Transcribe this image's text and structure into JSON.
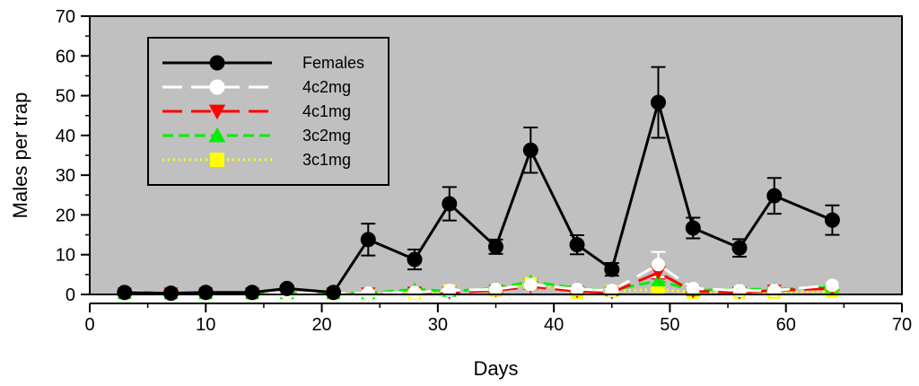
{
  "chart_data": {
    "type": "line",
    "xlabel": "Days",
    "ylabel": "Males per trap",
    "xlim": [
      0,
      70
    ],
    "ylim": [
      0,
      70
    ],
    "x_ticks": [
      0,
      10,
      20,
      30,
      40,
      50,
      60,
      70
    ],
    "y_ticks": [
      0,
      10,
      20,
      30,
      40,
      50,
      60,
      70
    ],
    "grid": false,
    "legend_position": "top-left",
    "plot_background": "#c0c0c0",
    "x": [
      3,
      7,
      10,
      14,
      17,
      21,
      24,
      28,
      31,
      35,
      38,
      42,
      45,
      49,
      52,
      56,
      59,
      64
    ],
    "series": [
      {
        "name": "Females",
        "color": "#000000",
        "dash": "solid",
        "marker": "circle",
        "values": [
          0.5,
          0.3,
          0.5,
          0.5,
          1.5,
          0.5,
          13.8,
          8.8,
          22.8,
          12.0,
          36.3,
          12.5,
          6.3,
          48.3,
          16.7,
          11.7,
          24.8,
          18.7
        ],
        "errors": [
          0.3,
          0.2,
          0.3,
          0.3,
          0.6,
          0.3,
          4.0,
          2.5,
          4.2,
          1.8,
          5.7,
          2.4,
          1.6,
          8.9,
          2.6,
          2.2,
          4.5,
          3.7
        ]
      },
      {
        "name": "4c2mg",
        "color": "#ffffff",
        "dash": "long-dash",
        "marker": "circle",
        "values": [
          0.8,
          0.3,
          0.3,
          0.3,
          0.3,
          0.3,
          0.3,
          0.5,
          1.0,
          1.3,
          2.5,
          1.3,
          1.0,
          7.5,
          1.5,
          1.0,
          1.0,
          2.3
        ],
        "errors": [
          0.3,
          0.2,
          0.2,
          0.2,
          0.2,
          0.2,
          0.2,
          0.3,
          0.4,
          0.4,
          0.8,
          0.4,
          0.4,
          3.2,
          0.4,
          0.3,
          0.3,
          0.6
        ]
      },
      {
        "name": "4c1mg",
        "color": "#ff0000",
        "dash": "long-dash",
        "marker": "triangle-down",
        "values": [
          0.3,
          0.3,
          0.3,
          0.3,
          0.3,
          0.3,
          0.3,
          0.5,
          0.5,
          1.0,
          2.0,
          0.8,
          0.5,
          5.5,
          0.8,
          0.5,
          1.0,
          1.5
        ],
        "errors": [
          0.2,
          0.2,
          0.2,
          0.2,
          0.2,
          0.2,
          0.2,
          0.3,
          0.3,
          0.4,
          0.6,
          0.3,
          0.3,
          1.5,
          0.3,
          0.3,
          0.3,
          0.4
        ]
      },
      {
        "name": "3c2mg",
        "color": "#00ee00",
        "dash": "dash",
        "marker": "triangle-up",
        "values": [
          0.3,
          0.3,
          0.3,
          0.3,
          0.3,
          0.3,
          0.3,
          1.3,
          0.8,
          1.5,
          3.3,
          1.5,
          1.0,
          3.5,
          1.0,
          1.3,
          1.3,
          1.8
        ],
        "errors": [
          0.2,
          0.2,
          0.2,
          0.2,
          0.2,
          0.2,
          0.2,
          0.4,
          0.3,
          0.4,
          0.7,
          0.4,
          0.3,
          0.8,
          0.3,
          0.4,
          0.4,
          0.4
        ]
      },
      {
        "name": "3c1mg",
        "color": "#ffff00",
        "dash": "dot",
        "marker": "square",
        "values": [
          0.3,
          0.2,
          0.2,
          0.2,
          0.2,
          0.2,
          0.2,
          0.3,
          1.0,
          1.0,
          2.8,
          0.5,
          0.8,
          1.3,
          0.5,
          0.5,
          0.5,
          0.8
        ],
        "errors": [
          0.2,
          0.2,
          0.2,
          0.2,
          0.2,
          0.2,
          0.2,
          0.2,
          0.3,
          0.3,
          0.6,
          0.2,
          0.3,
          0.4,
          0.2,
          0.2,
          0.2,
          0.3
        ]
      }
    ]
  }
}
